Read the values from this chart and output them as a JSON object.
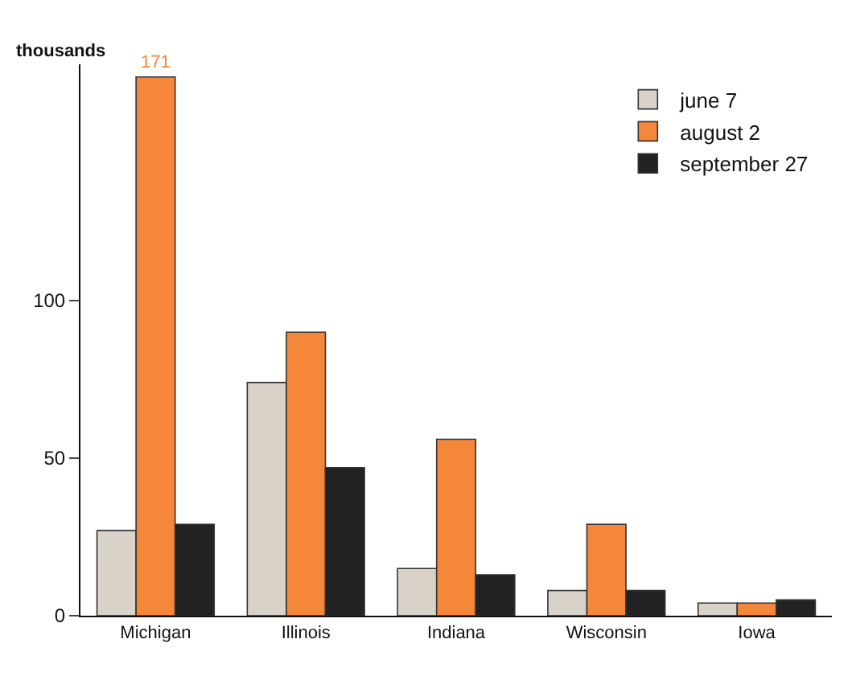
{
  "chart_data": {
    "type": "bar",
    "ylabel": "thousands",
    "categories": [
      "Michigan",
      "Illinois",
      "Indiana",
      "Wisconsin",
      "Iowa"
    ],
    "series": [
      {
        "name": "june 7",
        "color": "#d9d2c8",
        "values": [
          27,
          74,
          15,
          8,
          4
        ]
      },
      {
        "name": "august 2",
        "color": "#f5873a",
        "values": [
          171,
          90,
          56,
          29,
          4
        ],
        "value_labels": [
          "171",
          null,
          null,
          null,
          null
        ]
      },
      {
        "name": "september 27",
        "color": "#222222",
        "values": [
          29,
          47,
          13,
          8,
          5
        ]
      }
    ],
    "ylim": [
      0,
      175
    ],
    "yticks": [
      0,
      50,
      100
    ],
    "legend": "top right"
  }
}
